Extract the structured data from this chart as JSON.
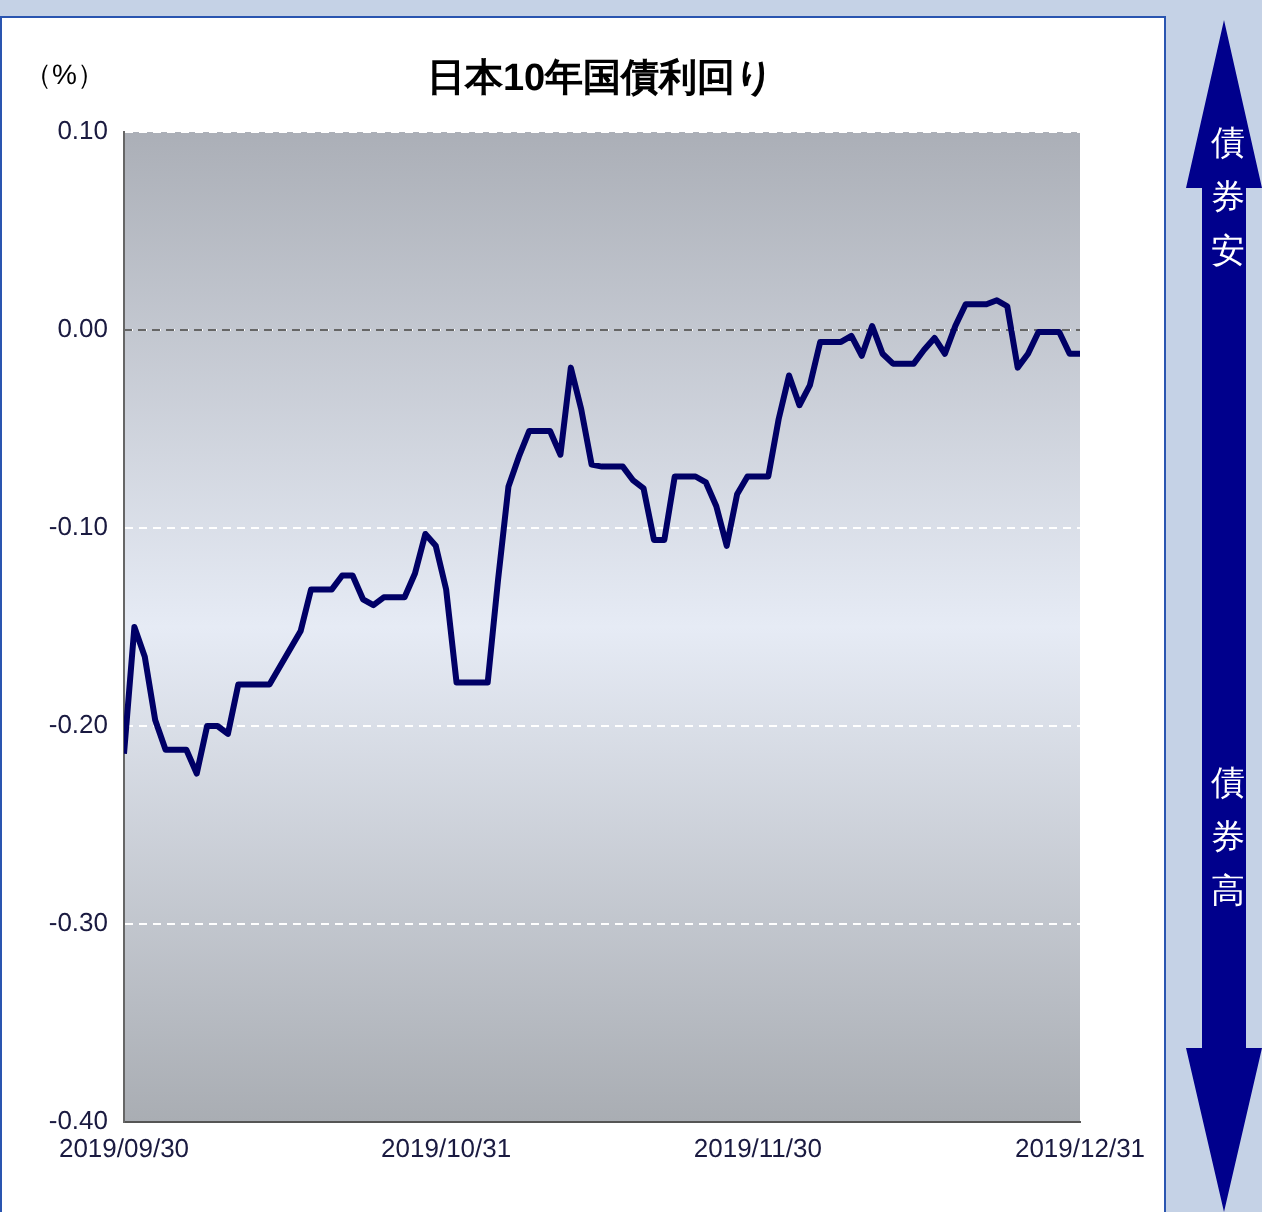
{
  "chart_data": {
    "type": "line",
    "title": "日本10年国債利回り",
    "ylabel": "（%）",
    "color": "#000066",
    "x": [
      "2019-09-30",
      "2019-10-01",
      "2019-10-02",
      "2019-10-03",
      "2019-10-04",
      "2019-10-06",
      "2019-10-07",
      "2019-10-08",
      "2019-10-09",
      "2019-10-10",
      "2019-10-11",
      "2019-10-14",
      "2019-10-17",
      "2019-10-18",
      "2019-10-20",
      "2019-10-21",
      "2019-10-22",
      "2019-10-23",
      "2019-10-24",
      "2019-10-25",
      "2019-10-27",
      "2019-10-28",
      "2019-10-29",
      "2019-10-30",
      "2019-10-31",
      "2019-11-01",
      "2019-11-04",
      "2019-11-05",
      "2019-11-06",
      "2019-11-07",
      "2019-11-08",
      "2019-11-10",
      "2019-11-11",
      "2019-11-12",
      "2019-11-13",
      "2019-11-14",
      "2019-11-15",
      "2019-11-17",
      "2019-11-18",
      "2019-11-19",
      "2019-11-20",
      "2019-11-21",
      "2019-11-22",
      "2019-11-24",
      "2019-11-25",
      "2019-11-26",
      "2019-11-27",
      "2019-11-28",
      "2019-11-29",
      "2019-12-01",
      "2019-12-02",
      "2019-12-03",
      "2019-12-04",
      "2019-12-05",
      "2019-12-06",
      "2019-12-08",
      "2019-12-09",
      "2019-12-10",
      "2019-12-11",
      "2019-12-12",
      "2019-12-13",
      "2019-12-15",
      "2019-12-16",
      "2019-12-17",
      "2019-12-18",
      "2019-12-19",
      "2019-12-20",
      "2019-12-22",
      "2019-12-23",
      "2019-12-24",
      "2019-12-25",
      "2019-12-26",
      "2019-12-27",
      "2019-12-29",
      "2019-12-30",
      "2019-12-31"
    ],
    "values": [
      -0.214,
      -0.15,
      -0.165,
      -0.197,
      -0.212,
      -0.212,
      -0.224,
      -0.2,
      -0.2,
      -0.204,
      -0.179,
      -0.179,
      -0.152,
      -0.131,
      -0.131,
      -0.124,
      -0.124,
      -0.136,
      -0.139,
      -0.135,
      -0.135,
      -0.123,
      -0.103,
      -0.109,
      -0.131,
      -0.178,
      -0.178,
      -0.126,
      -0.079,
      -0.064,
      -0.051,
      -0.051,
      -0.063,
      -0.019,
      -0.04,
      -0.068,
      -0.069,
      -0.069,
      -0.076,
      -0.08,
      -0.106,
      -0.106,
      -0.074,
      -0.074,
      -0.077,
      -0.089,
      -0.109,
      -0.083,
      -0.074,
      -0.074,
      -0.045,
      -0.023,
      -0.038,
      -0.028,
      -0.006,
      -0.006,
      -0.003,
      -0.013,
      0.002,
      -0.012,
      -0.017,
      -0.017,
      -0.01,
      -0.004,
      -0.012,
      0.002,
      0.013,
      0.013,
      0.015,
      0.012,
      -0.019,
      -0.012,
      -0.001,
      -0.001,
      -0.012,
      -0.012
    ],
    "xlim": [
      "2019-09-30",
      "2019-12-31"
    ],
    "xticks": [
      {
        "value": "2019-09-30",
        "label": "2019/09/30"
      },
      {
        "value": "2019-10-31",
        "label": "2019/10/31"
      },
      {
        "value": "2019-11-30",
        "label": "2019/11/30"
      },
      {
        "value": "2019-12-31",
        "label": "2019/12/31"
      }
    ],
    "ylim": [
      -0.4,
      0.1
    ],
    "yticks": [
      {
        "value": 0.1,
        "label": "0.10"
      },
      {
        "value": 0,
        "label": "0.00"
      },
      {
        "value": -0.1,
        "label": "-0.10"
      },
      {
        "value": -0.2,
        "label": "-0.20"
      },
      {
        "value": -0.3,
        "label": "-0.30"
      },
      {
        "value": -0.4,
        "label": "-0.40"
      }
    ],
    "grid": "y",
    "ref_lines": [
      {
        "axis": "y",
        "value": 0,
        "color": "#666666",
        "line_style": "dashed"
      }
    ],
    "annotations": [
      "債券安",
      "債券高"
    ]
  }
}
